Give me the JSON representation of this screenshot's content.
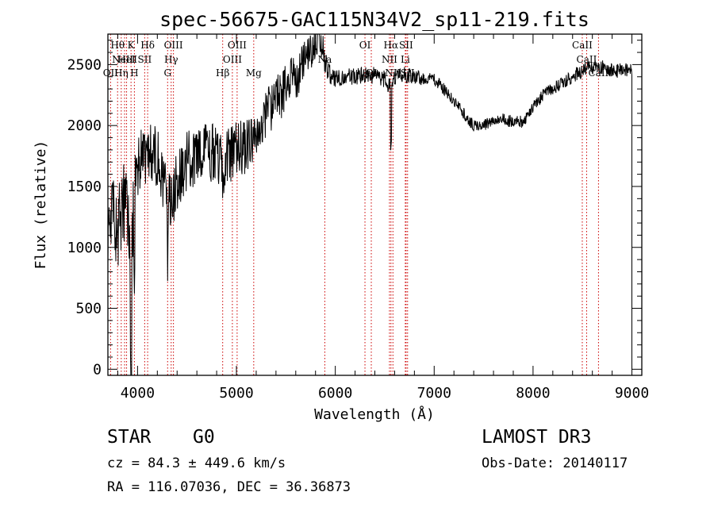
{
  "chart_data": {
    "type": "line",
    "title": "spec-56675-GAC115N34V2_sp11-219.fits",
    "xlabel": "Wavelength (Å)",
    "ylabel": "Flux (relative)",
    "xlim": [
      3700,
      9100
    ],
    "ylim": [
      -50,
      2750
    ],
    "xticks": [
      4000,
      5000,
      6000,
      7000,
      8000,
      9000
    ],
    "yticks": [
      0,
      500,
      1000,
      1500,
      2000,
      2500
    ],
    "xtick_labels": [
      "4000",
      "5000",
      "6000",
      "7000",
      "8000",
      "9000"
    ],
    "ytick_labels": [
      "0",
      "500",
      "1000",
      "1500",
      "2000",
      "2500"
    ],
    "series": [
      {
        "name": "flux",
        "envelope": {
          "x": [
            3700,
            3720,
            3760,
            3800,
            3850,
            3900,
            3935,
            3970,
            4000,
            4100,
            4200,
            4300,
            4340,
            4400,
            4500,
            4600,
            4700,
            4800,
            4861,
            4900,
            5000,
            5100,
            5200,
            5300,
            5400,
            5500,
            5600,
            5700,
            5780,
            5830,
            5870,
            5900,
            5950,
            6000,
            6100,
            6200,
            6300,
            6400,
            6500,
            6563,
            6600,
            6700,
            6800,
            6900,
            7000,
            7100,
            7200,
            7300,
            7400,
            7500,
            7600,
            7700,
            7800,
            7900,
            8000,
            8100,
            8200,
            8300,
            8400,
            8500,
            8600,
            8700,
            8800,
            8900,
            8990,
            9000
          ],
          "y": [
            900,
            1200,
            1300,
            1100,
            1400,
            1300,
            700,
            1600,
            1700,
            1800,
            1750,
            1450,
            1400,
            1550,
            1700,
            1750,
            1800,
            1750,
            1650,
            1750,
            1800,
            1850,
            1950,
            2100,
            2200,
            2300,
            2400,
            2550,
            2650,
            2750,
            2650,
            2500,
            2400,
            2380,
            2400,
            2400,
            2420,
            2410,
            2380,
            2300,
            2380,
            2420,
            2400,
            2380,
            2380,
            2300,
            2200,
            2100,
            2000,
            2000,
            2050,
            2050,
            2030,
            2030,
            2150,
            2250,
            2300,
            2350,
            2400,
            2450,
            2480,
            2480,
            2450,
            2450,
            2450,
            2450
          ],
          "noise": [
            250,
            250,
            300,
            350,
            350,
            350,
            400,
            300,
            300,
            250,
            250,
            250,
            300,
            250,
            250,
            250,
            250,
            250,
            250,
            250,
            250,
            250,
            200,
            200,
            200,
            200,
            200,
            150,
            150,
            150,
            120,
            100,
            80,
            70,
            70,
            70,
            70,
            70,
            70,
            70,
            70,
            70,
            60,
            60,
            50,
            50,
            50,
            50,
            50,
            50,
            50,
            50,
            50,
            50,
            50,
            50,
            50,
            50,
            60,
            60,
            60,
            60,
            60,
            60,
            60,
            60
          ]
        }
      }
    ],
    "lines": [
      {
        "w": 3727,
        "label": "OII",
        "row": 3
      },
      {
        "w": 3798,
        "label": "Hθ",
        "row": 1
      },
      {
        "w": 3835,
        "label": "Hη",
        "row": 3
      },
      {
        "w": 3869,
        "label": "NeIII",
        "row": 2
      },
      {
        "w": 3889,
        "label": "HeI",
        "row": 2
      },
      {
        "w": 3934,
        "label": "K",
        "row": 1
      },
      {
        "w": 3968,
        "label": "H",
        "row": 3
      },
      {
        "w": 4072,
        "label": "SII",
        "row": 2
      },
      {
        "w": 4102,
        "label": "Hδ",
        "row": 1
      },
      {
        "w": 4304,
        "label": "G",
        "row": 3
      },
      {
        "w": 4340,
        "label": "Hγ",
        "row": 2
      },
      {
        "w": 4363,
        "label": "OIII",
        "row": 1
      },
      {
        "w": 4861,
        "label": "Hβ",
        "row": 3
      },
      {
        "w": 4959,
        "label": "OIII",
        "row": 2
      },
      {
        "w": 5007,
        "label": "OIII",
        "row": 1
      },
      {
        "w": 5175,
        "label": "Mg",
        "row": 3
      },
      {
        "w": 5894,
        "label": "Na",
        "row": 2
      },
      {
        "w": 6300,
        "label": "OI",
        "row": 1
      },
      {
        "w": 6364,
        "label": "OI",
        "row": 3
      },
      {
        "w": 6548,
        "label": "NII",
        "row": 2
      },
      {
        "w": 6563,
        "label": "Hα",
        "row": 1
      },
      {
        "w": 6583,
        "label": "NII",
        "row": 3
      },
      {
        "w": 6708,
        "label": "Li",
        "row": 2
      },
      {
        "w": 6716,
        "label": "SII",
        "row": 1
      },
      {
        "w": 6731,
        "label": "SII",
        "row": 3
      },
      {
        "w": 8498,
        "label": "CaII",
        "row": 1
      },
      {
        "w": 8542,
        "label": "CaII",
        "row": 2
      },
      {
        "w": 8662,
        "label": "CaII",
        "row": 3
      }
    ]
  },
  "footer": {
    "object_class": "STAR",
    "subclass": "G0",
    "survey": "LAMOST DR3",
    "velocity": "cz = 84.3 ± 449.6 km/s",
    "obs_date": "Obs-Date: 20140117",
    "coords": "RA = 116.07036, DEC =  36.36873"
  },
  "colors": {
    "axis": "#000000",
    "spectrum": "#000000",
    "line_marker": "#cc0000",
    "background": "#ffffff"
  }
}
